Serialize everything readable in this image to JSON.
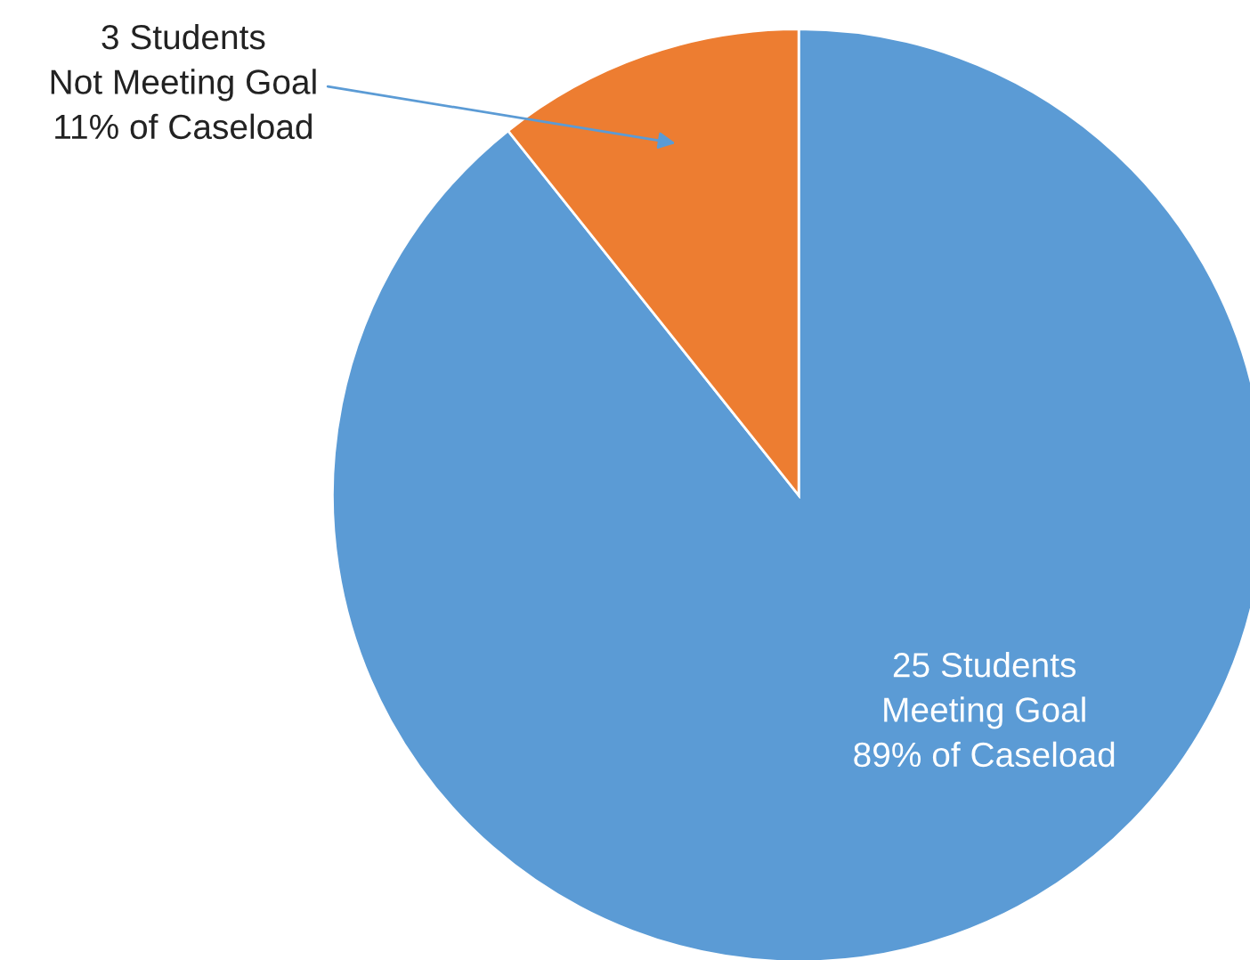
{
  "chart_data": {
    "type": "pie",
    "categories": [
      "25 Students\nMeeting Goal\n89% of Caseload",
      "3 Students\nNot Meeting Goal\n11% of Caseload"
    ],
    "values": [
      25,
      3
    ],
    "colors": [
      "#5b9bd5",
      "#ed7d31"
    ]
  }
}
